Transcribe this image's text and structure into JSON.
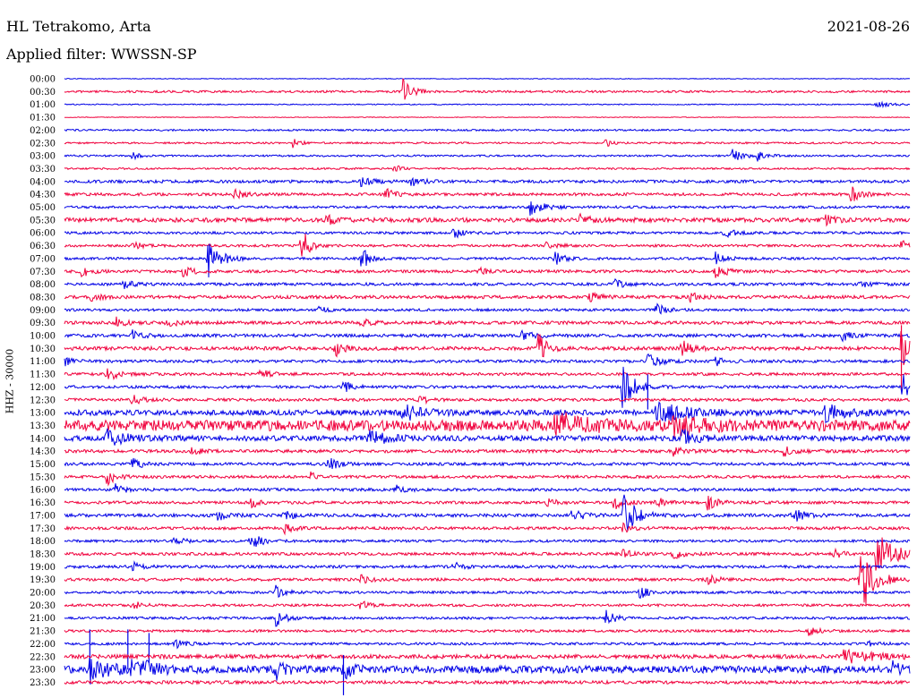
{
  "header": {
    "station": "HL Tetrakomo, Arta",
    "date": "2021-08-26",
    "filter": "Applied filter: WWSSN-SP",
    "channel": "HHZ - 30000"
  },
  "colors": {
    "even_hour": "#0000e6",
    "half_hour": "#f0003c"
  },
  "chart_data": {
    "type": "line",
    "title": "HL Tetrakomo, Arta",
    "ylabel": "HHZ - 30000",
    "rows": [
      "00:00",
      "00:30",
      "01:00",
      "01:30",
      "02:00",
      "02:30",
      "03:00",
      "03:30",
      "04:00",
      "04:30",
      "05:00",
      "05:30",
      "06:00",
      "06:30",
      "07:00",
      "07:30",
      "08:00",
      "08:30",
      "09:00",
      "09:30",
      "10:00",
      "10:30",
      "11:00",
      "11:30",
      "12:00",
      "12:30",
      "13:00",
      "13:30",
      "14:00",
      "14:30",
      "15:00",
      "15:30",
      "16:00",
      "16:30",
      "17:00",
      "17:30",
      "18:00",
      "18:30",
      "19:00",
      "19:30",
      "20:00",
      "20:30",
      "21:00",
      "21:30",
      "22:00",
      "22:30",
      "23:00",
      "23:30"
    ],
    "noise": [
      0.4,
      1.2,
      0.6,
      0.4,
      1.0,
      1.0,
      1.0,
      1.0,
      1.6,
      1.6,
      1.4,
      2.4,
      1.4,
      1.4,
      1.4,
      1.6,
      1.6,
      1.8,
      1.4,
      1.8,
      1.8,
      2.0,
      1.6,
      1.6,
      1.6,
      1.6,
      3.0,
      6.0,
      3.0,
      1.8,
      1.6,
      1.6,
      1.6,
      1.6,
      1.8,
      1.6,
      1.4,
      1.6,
      1.6,
      1.6,
      1.4,
      1.4,
      1.4,
      1.4,
      1.4,
      2.2,
      4.0,
      1.8
    ],
    "events": [
      [
        1,
        0.4,
        14,
        0.01
      ],
      [
        2,
        0.96,
        3,
        0.02
      ],
      [
        5,
        0.27,
        5,
        0.008
      ],
      [
        5,
        0.64,
        4,
        0.008
      ],
      [
        6,
        0.08,
        4,
        0.008
      ],
      [
        6,
        0.79,
        8,
        0.012
      ],
      [
        6,
        0.82,
        6,
        0.01
      ],
      [
        7,
        0.39,
        4,
        0.008
      ],
      [
        8,
        0.35,
        6,
        0.012
      ],
      [
        8,
        0.41,
        5,
        0.012
      ],
      [
        9,
        0.2,
        6,
        0.01
      ],
      [
        9,
        0.38,
        6,
        0.01
      ],
      [
        9,
        0.93,
        10,
        0.01
      ],
      [
        10,
        0.55,
        10,
        0.014
      ],
      [
        11,
        0.31,
        7,
        0.01
      ],
      [
        11,
        0.61,
        6,
        0.01
      ],
      [
        11,
        0.9,
        5,
        0.01
      ],
      [
        12,
        0.46,
        6,
        0.01
      ],
      [
        12,
        0.78,
        6,
        0.01
      ],
      [
        13,
        0.08,
        5,
        0.01
      ],
      [
        13,
        0.28,
        22,
        0.008
      ],
      [
        13,
        0.57,
        5,
        0.01
      ],
      [
        13,
        0.99,
        7,
        0.006
      ],
      [
        14,
        0.17,
        26,
        0.012
      ],
      [
        14,
        0.35,
        16,
        0.008
      ],
      [
        14,
        0.58,
        8,
        0.01
      ],
      [
        14,
        0.77,
        7,
        0.01
      ],
      [
        15,
        0.02,
        6,
        0.01
      ],
      [
        15,
        0.14,
        6,
        0.01
      ],
      [
        15,
        0.49,
        5,
        0.01
      ],
      [
        15,
        0.77,
        8,
        0.012
      ],
      [
        16,
        0.07,
        5,
        0.01
      ],
      [
        16,
        0.65,
        5,
        0.01
      ],
      [
        16,
        0.94,
        4,
        0.01
      ],
      [
        17,
        0.03,
        5,
        0.01
      ],
      [
        17,
        0.62,
        6,
        0.01
      ],
      [
        17,
        0.74,
        5,
        0.01
      ],
      [
        18,
        0.3,
        4,
        0.01
      ],
      [
        18,
        0.7,
        7,
        0.01
      ],
      [
        19,
        0.06,
        6,
        0.01
      ],
      [
        19,
        0.12,
        6,
        0.01
      ],
      [
        19,
        0.35,
        5,
        0.01
      ],
      [
        20,
        0.08,
        6,
        0.01
      ],
      [
        20,
        0.54,
        6,
        0.012
      ],
      [
        20,
        0.92,
        6,
        0.01
      ],
      [
        21,
        0.32,
        9,
        0.01
      ],
      [
        21,
        0.56,
        22,
        0.008
      ],
      [
        21,
        0.73,
        9,
        0.01
      ],
      [
        21,
        0.99,
        36,
        0.006
      ],
      [
        22,
        0.0,
        5,
        0.01
      ],
      [
        22,
        0.69,
        9,
        0.012
      ],
      [
        22,
        0.77,
        5,
        0.01
      ],
      [
        23,
        0.05,
        9,
        0.01
      ],
      [
        23,
        0.23,
        7,
        0.01
      ],
      [
        24,
        0.33,
        6,
        0.01
      ],
      [
        24,
        0.66,
        26,
        0.012
      ],
      [
        24,
        0.99,
        20,
        0.01
      ],
      [
        25,
        0.08,
        6,
        0.01
      ],
      [
        25,
        0.42,
        5,
        0.01
      ],
      [
        26,
        0.4,
        10,
        0.02
      ],
      [
        26,
        0.7,
        12,
        0.03
      ],
      [
        26,
        0.9,
        10,
        0.02
      ],
      [
        27,
        0.58,
        14,
        0.03
      ],
      [
        27,
        0.72,
        10,
        0.03
      ],
      [
        28,
        0.05,
        9,
        0.02
      ],
      [
        28,
        0.36,
        8,
        0.02
      ],
      [
        28,
        0.73,
        12,
        0.012
      ],
      [
        29,
        0.15,
        5,
        0.01
      ],
      [
        29,
        0.72,
        5,
        0.01
      ],
      [
        29,
        0.85,
        6,
        0.01
      ],
      [
        30,
        0.08,
        7,
        0.01
      ],
      [
        30,
        0.31,
        8,
        0.012
      ],
      [
        31,
        0.05,
        9,
        0.01
      ],
      [
        31,
        0.29,
        5,
        0.01
      ],
      [
        32,
        0.06,
        6,
        0.01
      ],
      [
        32,
        0.39,
        6,
        0.01
      ],
      [
        33,
        0.22,
        6,
        0.01
      ],
      [
        33,
        0.57,
        5,
        0.01
      ],
      [
        33,
        0.65,
        9,
        0.012
      ],
      [
        33,
        0.7,
        6,
        0.01
      ],
      [
        33,
        0.76,
        9,
        0.01
      ],
      [
        34,
        0.18,
        6,
        0.01
      ],
      [
        34,
        0.26,
        6,
        0.01
      ],
      [
        34,
        0.6,
        8,
        0.012
      ],
      [
        34,
        0.66,
        26,
        0.014
      ],
      [
        34,
        0.86,
        9,
        0.012
      ],
      [
        35,
        0.26,
        5,
        0.01
      ],
      [
        35,
        0.66,
        5,
        0.01
      ],
      [
        36,
        0.13,
        5,
        0.01
      ],
      [
        36,
        0.22,
        12,
        0.01
      ],
      [
        37,
        0.66,
        5,
        0.01
      ],
      [
        37,
        0.72,
        6,
        0.01
      ],
      [
        37,
        0.91,
        5,
        0.01
      ],
      [
        37,
        0.96,
        28,
        0.018
      ],
      [
        38,
        0.08,
        5,
        0.01
      ],
      [
        38,
        0.46,
        5,
        0.01
      ],
      [
        39,
        0.35,
        5,
        0.01
      ],
      [
        39,
        0.76,
        6,
        0.01
      ],
      [
        39,
        0.94,
        48,
        0.014
      ],
      [
        40,
        0.25,
        7,
        0.01
      ],
      [
        40,
        0.68,
        7,
        0.012
      ],
      [
        41,
        0.08,
        5,
        0.01
      ],
      [
        41,
        0.35,
        5,
        0.01
      ],
      [
        42,
        0.25,
        9,
        0.01
      ],
      [
        42,
        0.64,
        9,
        0.01
      ],
      [
        43,
        0.88,
        5,
        0.01
      ],
      [
        44,
        0.13,
        5,
        0.01
      ],
      [
        44,
        0.95,
        5,
        0.01
      ],
      [
        45,
        0.92,
        7,
        0.04
      ],
      [
        46,
        0.03,
        14,
        0.02
      ],
      [
        46,
        0.08,
        14,
        0.02
      ],
      [
        46,
        0.25,
        12,
        0.01
      ],
      [
        46,
        0.33,
        10,
        0.01
      ],
      [
        46,
        0.98,
        8,
        0.01
      ]
    ],
    "spikes": [
      [
        44,
        0.03,
        16
      ],
      [
        44,
        0.075,
        16
      ],
      [
        44,
        0.1,
        12
      ],
      [
        46,
        0.33,
        16
      ],
      [
        21,
        0.99,
        26
      ],
      [
        24,
        0.69,
        14
      ]
    ]
  }
}
